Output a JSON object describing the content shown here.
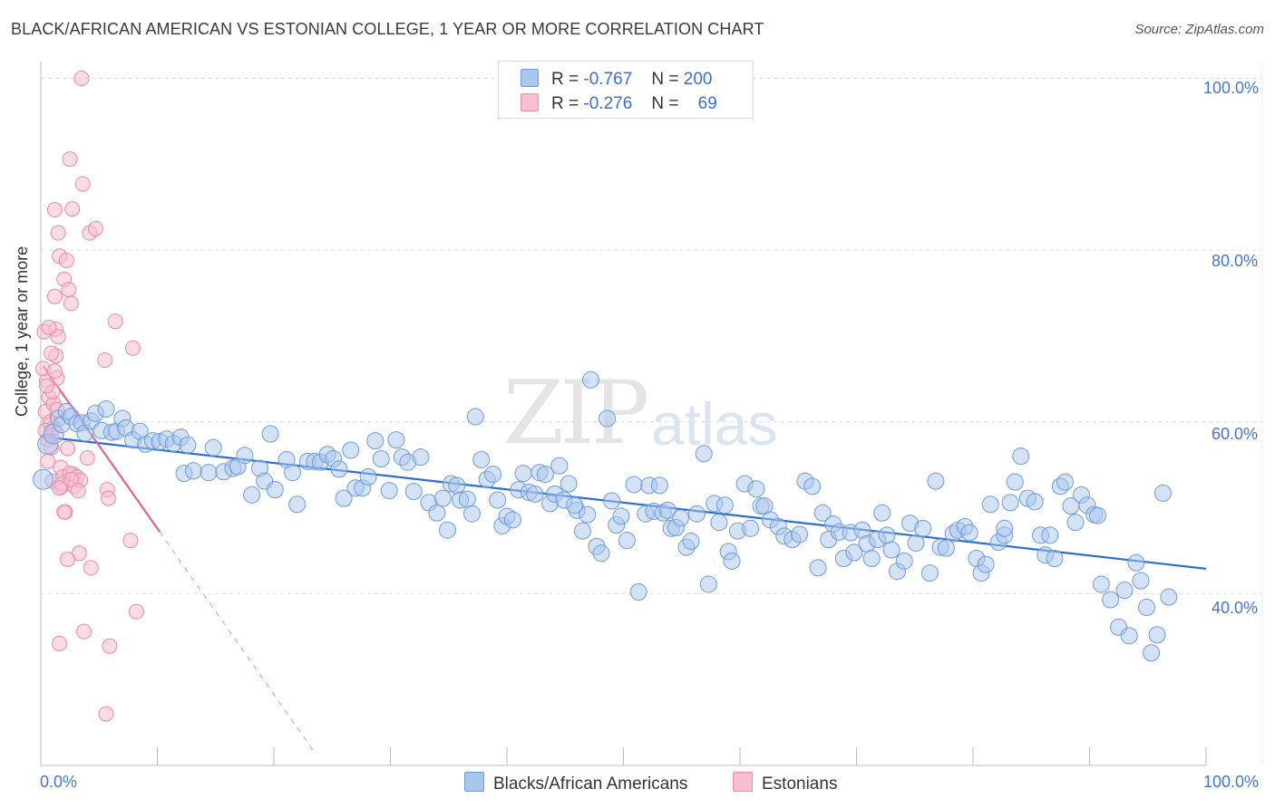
{
  "title": "BLACK/AFRICAN AMERICAN VS ESTONIAN COLLEGE, 1 YEAR OR MORE CORRELATION CHART",
  "source": "Source: ZipAtlas.com",
  "watermark": {
    "zip": "ZIP",
    "atlas": "atlas"
  },
  "colors": {
    "blue_fill": "#a9c6ee",
    "blue_stroke": "#6f9bd8",
    "blue_line": "#2a6fd1",
    "pink_fill": "#f7bfd0",
    "pink_stroke": "#e98aa8",
    "pink_line": "#e3638d",
    "grid": "#dddddd",
    "tick_text": "#4477cc"
  },
  "legend": {
    "rows": [
      {
        "r_label": "R =",
        "r_value": "-0.767",
        "n_label": "N =",
        "n_value": "200"
      },
      {
        "r_label": "R =",
        "r_value": "-0.276",
        "n_label": "N =",
        "n_value": "69"
      }
    ]
  },
  "bottom_legend": {
    "series1": "Blacks/African Americans",
    "series2": "Estonians"
  },
  "chart_data": {
    "type": "scatter",
    "title": "BLACK/AFRICAN AMERICAN VS ESTONIAN COLLEGE, 1 YEAR OR MORE CORRELATION CHART",
    "xlabel": "",
    "ylabel": "College, 1 year or more",
    "xlim": [
      0,
      100
    ],
    "ylim": [
      20,
      101
    ],
    "x_tick_labels": [
      "0.0%",
      "100.0%"
    ],
    "y_tick_labels": [
      {
        "value": 40,
        "label": "40.0%"
      },
      {
        "value": 60,
        "label": "60.0%"
      },
      {
        "value": 80,
        "label": "80.0%"
      },
      {
        "value": 100,
        "label": "100.0%"
      }
    ],
    "grid": true,
    "series": [
      {
        "name": "Blacks/African Americans",
        "r": -0.767,
        "n": 200,
        "trend": {
          "x": [
            0,
            100
          ],
          "y": [
            58.3,
            42.9
          ],
          "style": "solid"
        },
        "points": [
          [
            0.2,
            53.3
          ],
          [
            0.6,
            57.4
          ],
          [
            1.1,
            58.6
          ],
          [
            1.5,
            60.4
          ],
          [
            1.8,
            59.7
          ],
          [
            2.2,
            61.2
          ],
          [
            2.6,
            60.6
          ],
          [
            3.1,
            59.8
          ],
          [
            3.5,
            59.9
          ],
          [
            3.8,
            58.7
          ],
          [
            4.3,
            60.1
          ],
          [
            4.7,
            61.0
          ],
          [
            5.2,
            59.0
          ],
          [
            5.6,
            61.5
          ],
          [
            6.1,
            58.8
          ],
          [
            6.5,
            58.9
          ],
          [
            7.0,
            60.4
          ],
          [
            7.3,
            59.3
          ],
          [
            7.9,
            57.9
          ],
          [
            8.5,
            58.9
          ],
          [
            9.0,
            57.4
          ],
          [
            9.6,
            57.8
          ],
          [
            10.2,
            57.7
          ],
          [
            10.8,
            58.0
          ],
          [
            11.4,
            57.5
          ],
          [
            12.0,
            58.2
          ],
          [
            12.6,
            57.3
          ],
          [
            12.3,
            54.0
          ],
          [
            13.1,
            54.3
          ],
          [
            14.4,
            54.1
          ],
          [
            14.8,
            57.0
          ],
          [
            15.7,
            54.2
          ],
          [
            16.5,
            54.6
          ],
          [
            16.9,
            54.8
          ],
          [
            17.5,
            56.1
          ],
          [
            18.1,
            51.5
          ],
          [
            18.8,
            54.6
          ],
          [
            19.2,
            53.1
          ],
          [
            19.7,
            58.6
          ],
          [
            20.1,
            52.1
          ],
          [
            21.1,
            55.6
          ],
          [
            21.6,
            54.1
          ],
          [
            22.0,
            50.4
          ],
          [
            22.9,
            55.4
          ],
          [
            23.5,
            55.4
          ],
          [
            24.0,
            55.3
          ],
          [
            24.6,
            56.2
          ],
          [
            25.1,
            55.7
          ],
          [
            25.6,
            54.5
          ],
          [
            26.0,
            51.1
          ],
          [
            26.6,
            56.7
          ],
          [
            27.0,
            52.3
          ],
          [
            27.6,
            52.3
          ],
          [
            28.1,
            53.6
          ],
          [
            28.7,
            57.8
          ],
          [
            29.2,
            55.7
          ],
          [
            29.9,
            52.0
          ],
          [
            30.5,
            57.9
          ],
          [
            31.0,
            55.9
          ],
          [
            31.5,
            55.3
          ],
          [
            32.0,
            51.9
          ],
          [
            32.6,
            55.9
          ],
          [
            33.3,
            50.6
          ],
          [
            34.0,
            49.4
          ],
          [
            34.5,
            51.1
          ],
          [
            34.9,
            47.4
          ],
          [
            35.2,
            52.8
          ],
          [
            35.7,
            52.6
          ],
          [
            36.0,
            50.9
          ],
          [
            36.6,
            51.0
          ],
          [
            37.0,
            49.3
          ],
          [
            37.3,
            60.6
          ],
          [
            37.8,
            55.6
          ],
          [
            38.3,
            53.3
          ],
          [
            38.8,
            53.9
          ],
          [
            39.2,
            50.9
          ],
          [
            39.6,
            47.9
          ],
          [
            40.0,
            49.0
          ],
          [
            40.5,
            48.6
          ],
          [
            41.0,
            52.1
          ],
          [
            41.4,
            54.0
          ],
          [
            41.9,
            51.8
          ],
          [
            42.4,
            51.6
          ],
          [
            42.8,
            54.1
          ],
          [
            43.3,
            53.9
          ],
          [
            43.7,
            50.5
          ],
          [
            44.1,
            51.6
          ],
          [
            44.5,
            54.9
          ],
          [
            44.9,
            50.9
          ],
          [
            45.3,
            52.8
          ],
          [
            46.0,
            49.7
          ],
          [
            46.5,
            47.3
          ],
          [
            46.9,
            49.2
          ],
          [
            47.2,
            64.9
          ],
          [
            47.7,
            45.5
          ],
          [
            48.1,
            44.7
          ],
          [
            48.6,
            60.4
          ],
          [
            49.0,
            50.8
          ],
          [
            49.4,
            48.0
          ],
          [
            49.8,
            49.0
          ],
          [
            50.3,
            46.2
          ],
          [
            50.9,
            52.7
          ],
          [
            51.3,
            40.2
          ],
          [
            51.9,
            49.3
          ],
          [
            52.2,
            52.6
          ],
          [
            52.6,
            49.6
          ],
          [
            53.1,
            52.6
          ],
          [
            53.4,
            49.4
          ],
          [
            53.8,
            49.7
          ],
          [
            54.1,
            47.6
          ],
          [
            54.5,
            47.7
          ],
          [
            54.9,
            48.8
          ],
          [
            55.4,
            45.4
          ],
          [
            55.8,
            46.1
          ],
          [
            56.3,
            49.3
          ],
          [
            56.9,
            56.3
          ],
          [
            57.3,
            41.1
          ],
          [
            57.8,
            50.5
          ],
          [
            58.2,
            48.3
          ],
          [
            58.7,
            50.3
          ],
          [
            59.0,
            44.9
          ],
          [
            59.3,
            43.8
          ],
          [
            59.8,
            47.3
          ],
          [
            60.4,
            52.8
          ],
          [
            60.9,
            47.6
          ],
          [
            61.4,
            52.2
          ],
          [
            61.8,
            50.2
          ],
          [
            62.1,
            50.2
          ],
          [
            62.6,
            48.6
          ],
          [
            63.3,
            47.8
          ],
          [
            63.8,
            46.7
          ],
          [
            64.5,
            46.3
          ],
          [
            65.1,
            46.9
          ],
          [
            65.6,
            53.1
          ],
          [
            66.2,
            52.5
          ],
          [
            66.7,
            43.0
          ],
          [
            67.1,
            49.4
          ],
          [
            67.6,
            46.3
          ],
          [
            68.0,
            48.1
          ],
          [
            68.5,
            47.2
          ],
          [
            68.9,
            44.1
          ],
          [
            69.5,
            47.1
          ],
          [
            69.8,
            44.8
          ],
          [
            70.5,
            47.4
          ],
          [
            70.9,
            45.8
          ],
          [
            71.3,
            44.1
          ],
          [
            71.8,
            46.3
          ],
          [
            72.2,
            49.4
          ],
          [
            72.6,
            46.8
          ],
          [
            73.0,
            45.1
          ],
          [
            73.5,
            42.6
          ],
          [
            74.1,
            43.8
          ],
          [
            74.6,
            48.2
          ],
          [
            75.1,
            45.9
          ],
          [
            75.7,
            47.6
          ],
          [
            76.3,
            42.4
          ],
          [
            76.8,
            53.1
          ],
          [
            77.2,
            45.4
          ],
          [
            77.7,
            45.3
          ],
          [
            78.3,
            47.0
          ],
          [
            78.7,
            47.4
          ],
          [
            79.3,
            47.8
          ],
          [
            79.7,
            47.1
          ],
          [
            80.3,
            44.1
          ],
          [
            80.7,
            42.4
          ],
          [
            81.1,
            43.4
          ],
          [
            81.5,
            50.4
          ],
          [
            82.2,
            46.0
          ],
          [
            82.7,
            46.8
          ],
          [
            83.2,
            50.6
          ],
          [
            83.6,
            53.0
          ],
          [
            84.1,
            56.0
          ],
          [
            84.7,
            51.1
          ],
          [
            85.3,
            50.7
          ],
          [
            85.8,
            46.8
          ],
          [
            86.2,
            44.5
          ],
          [
            86.6,
            46.8
          ],
          [
            87.0,
            44.1
          ],
          [
            87.5,
            52.5
          ],
          [
            87.9,
            53.0
          ],
          [
            88.4,
            50.2
          ],
          [
            88.8,
            48.3
          ],
          [
            89.3,
            51.5
          ],
          [
            89.8,
            50.3
          ],
          [
            90.4,
            49.2
          ],
          [
            91.0,
            41.1
          ],
          [
            91.8,
            39.3
          ],
          [
            92.5,
            36.1
          ],
          [
            93.0,
            40.4
          ],
          [
            93.4,
            35.1
          ],
          [
            94.0,
            43.6
          ],
          [
            94.4,
            41.5
          ],
          [
            94.9,
            38.4
          ],
          [
            95.3,
            33.1
          ],
          [
            95.8,
            35.2
          ],
          [
            96.3,
            51.7
          ],
          [
            96.8,
            39.6
          ],
          [
            90.7,
            49.1
          ],
          [
            82.7,
            47.6
          ],
          [
            45.8,
            50.3
          ]
        ]
      },
      {
        "name": "Estonians",
        "r": -0.276,
        "n": 69,
        "trend": {
          "x": [
            0.2,
            10.2
          ],
          "y": [
            66.5,
            47.2
          ],
          "style": "solid",
          "extension": {
            "x": [
              10.2,
              23.6
            ],
            "y": [
              47.2,
              21.3
            ],
            "style": "dashed"
          }
        },
        "points": [
          [
            0.3,
            70.5
          ],
          [
            0.5,
            64.8
          ],
          [
            0.4,
            61.2
          ],
          [
            0.6,
            57.9
          ],
          [
            0.2,
            66.2
          ],
          [
            0.7,
            62.9
          ],
          [
            0.8,
            59.7
          ],
          [
            0.6,
            55.4
          ],
          [
            1.0,
            53.1
          ],
          [
            0.9,
            58.4
          ],
          [
            1.1,
            62.1
          ],
          [
            1.3,
            70.8
          ],
          [
            1.5,
            69.9
          ],
          [
            1.4,
            65.1
          ],
          [
            1.2,
            74.6
          ],
          [
            1.3,
            67.7
          ],
          [
            1.1,
            59.3
          ],
          [
            1.5,
            82.0
          ],
          [
            1.6,
            79.3
          ],
          [
            1.2,
            84.7
          ],
          [
            1.7,
            54.7
          ],
          [
            1.8,
            52.5
          ],
          [
            1.9,
            53.6
          ],
          [
            2.0,
            76.6
          ],
          [
            2.1,
            49.5
          ],
          [
            2.2,
            78.8
          ],
          [
            2.4,
            75.4
          ],
          [
            2.3,
            56.9
          ],
          [
            2.5,
            90.6
          ],
          [
            2.6,
            73.8
          ],
          [
            2.7,
            84.8
          ],
          [
            2.8,
            53.9
          ],
          [
            2.5,
            54.0
          ],
          [
            2.9,
            52.5
          ],
          [
            3.1,
            53.6
          ],
          [
            3.3,
            44.7
          ],
          [
            3.4,
            53.2
          ],
          [
            3.5,
            100.0
          ],
          [
            3.6,
            87.7
          ],
          [
            1.6,
            34.2
          ],
          [
            2.3,
            44.0
          ],
          [
            4.2,
            82.0
          ],
          [
            4.3,
            43.0
          ],
          [
            4.7,
            82.5
          ],
          [
            4.0,
            55.8
          ],
          [
            5.5,
            67.2
          ],
          [
            5.7,
            52.1
          ],
          [
            5.8,
            51.1
          ],
          [
            5.9,
            33.9
          ],
          [
            6.4,
            71.7
          ],
          [
            7.7,
            46.2
          ],
          [
            7.9,
            68.6
          ],
          [
            8.2,
            37.9
          ],
          [
            5.6,
            26.0
          ],
          [
            3.7,
            35.6
          ],
          [
            0.9,
            68.0
          ],
          [
            1.0,
            63.5
          ],
          [
            0.8,
            60.0
          ],
          [
            1.4,
            61.4
          ],
          [
            0.5,
            64.2
          ],
          [
            1.8,
            52.8
          ],
          [
            2.0,
            49.5
          ],
          [
            0.7,
            71.0
          ],
          [
            1.2,
            65.9
          ],
          [
            0.4,
            59.0
          ],
          [
            1.6,
            52.3
          ],
          [
            2.6,
            53.3
          ],
          [
            3.2,
            52.0
          ],
          [
            0.9,
            57.0
          ]
        ]
      }
    ]
  }
}
